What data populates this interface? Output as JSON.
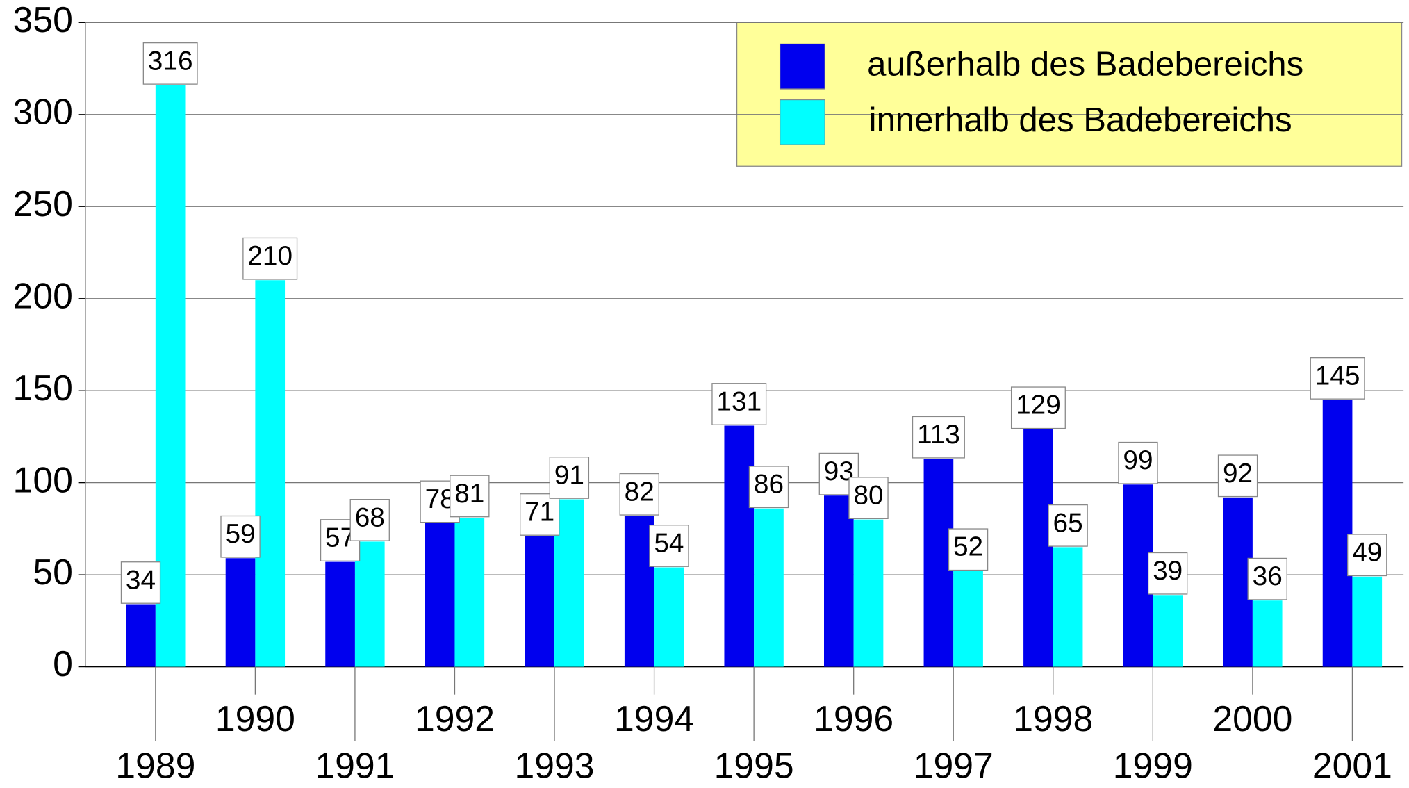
{
  "chart_data": {
    "type": "bar",
    "categories": [
      "1989",
      "1990",
      "1991",
      "1992",
      "1993",
      "1994",
      "1995",
      "1996",
      "1997",
      "1998",
      "1999",
      "2000",
      "2001"
    ],
    "series": [
      {
        "name": "außerhalb des Badebereichs",
        "color": "#0000ee",
        "values": [
          34,
          59,
          57,
          78,
          71,
          82,
          131,
          93,
          113,
          129,
          99,
          92,
          145
        ]
      },
      {
        "name": "innerhalb des Badebereichs",
        "color": "#00ffff",
        "values": [
          316,
          210,
          68,
          81,
          91,
          54,
          86,
          80,
          52,
          65,
          39,
          36,
          49
        ]
      }
    ],
    "ylim": [
      0,
      350
    ],
    "yticks": [
      0,
      50,
      100,
      150,
      200,
      250,
      300,
      350
    ],
    "grid": true,
    "legend": "top-right"
  }
}
